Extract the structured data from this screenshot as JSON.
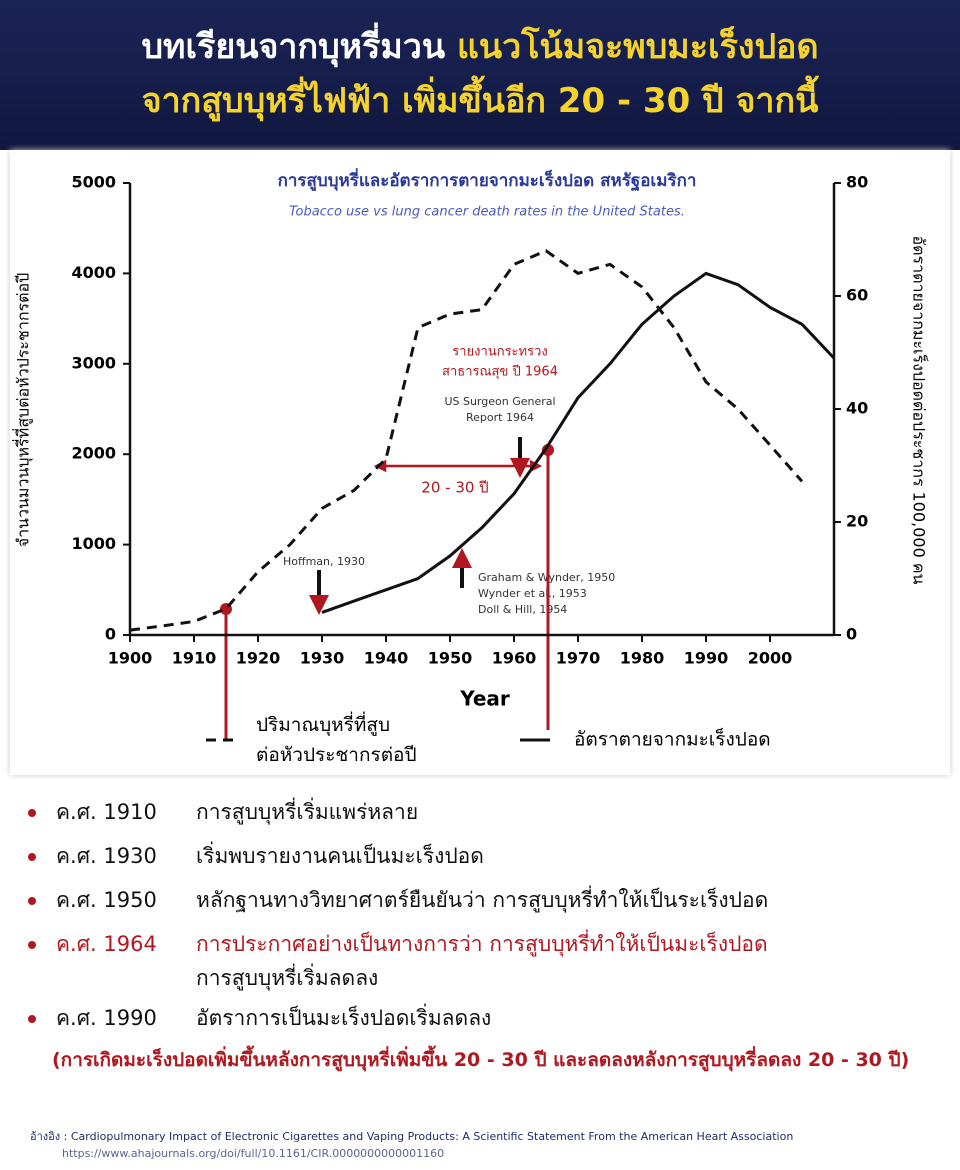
{
  "header": {
    "line1_white": "บทเรียนจากบุหรี่มวน",
    "line1_yellow": "แนวโน้มจะพบมะเร็งปอด",
    "line2": "จากสูบบุหรี่ไฟฟ้า เพิ่มขึ้นอีก 20 - 30 ปี จากนี้"
  },
  "chart_data": {
    "type": "line",
    "title": "การสูบบุหรี่และอัตราการตายจากมะเร็งปอด สหรัฐอเมริกา",
    "subtitle": "Tobacco use vs lung cancer death rates in the United States.",
    "x_label": "Year",
    "y_label": "จำนวนมวนบุหรี่ที่สูบต่อหัวประชากรต่อปี",
    "y2_label": "อัตราตายจากมะเร็งปอดต่อประชากร 100,000 คน",
    "x": [
      1900,
      1905,
      1910,
      1915,
      1920,
      1925,
      1930,
      1935,
      1940,
      1945,
      1950,
      1955,
      1960,
      1965,
      1970,
      1975,
      1980,
      1985,
      1990,
      1995,
      2000,
      2005,
      2010
    ],
    "xlim": [
      1900,
      2010
    ],
    "xticks": [
      1900,
      1910,
      1920,
      1930,
      1940,
      1950,
      1960,
      1970,
      1980,
      1990,
      2000
    ],
    "ylim": [
      0,
      5000
    ],
    "yticks": [
      0,
      1000,
      2000,
      3000,
      4000,
      5000
    ],
    "y2lim": [
      0,
      80
    ],
    "y2ticks": [
      0,
      20,
      40,
      60,
      80
    ],
    "series": [
      {
        "name": "ปริมาณบุหรี่ที่สูบ\nต่อหัวประชากรต่อปี",
        "color": "#111111",
        "dash": true,
        "values": [
          54,
          100,
          150,
          290,
          700,
          1000,
          1400,
          1600,
          1950,
          3400,
          3550,
          3600,
          4100,
          4250,
          4000,
          4100,
          3850,
          3400,
          2800,
          2500,
          2100,
          1700,
          null
        ]
      },
      {
        "name": "อัตราตายจากมะเร็งปอด",
        "color": "#111111",
        "dash": false,
        "axis": "y2",
        "values": [
          null,
          null,
          null,
          null,
          null,
          null,
          4,
          6,
          8,
          10,
          14,
          19,
          25,
          33,
          42,
          48,
          55,
          60,
          64,
          62,
          58,
          55,
          49
        ]
      }
    ],
    "annotations": [
      "รายงานกระทรวง",
      "สาธารณสุข ปี 1964",
      "US Surgeon General",
      "Report 1964",
      "Hoffman, 1930",
      "Graham & Wynder, 1950",
      "Wynder et al., 1953",
      "Doll & Hill, 1954",
      "20 - 30 ปี"
    ]
  },
  "timeline": [
    {
      "year": "ค.ศ. 1910",
      "text": "การสูบบุหรี่เริ่มแพร่หลาย"
    },
    {
      "year": "ค.ศ. 1930",
      "text": "เริ่มพบรายงานคนเป็นมะเร็งปอด"
    },
    {
      "year": "ค.ศ. 1950",
      "text": "หลักฐานทางวิทยาศาตร์ยืนยันว่า การสูบบุหรี่ทำให้เป็นระเร็งปอด"
    },
    {
      "year": "ค.ศ. 1964",
      "text": "การประกาศอย่างเป็นทางการว่า การสูบบุหรี่ทำให้เป็นมะเร็งปอด",
      "text2": "การสูบบุหรี่เริ่มลดลง"
    },
    {
      "year": "ค.ศ. 1990",
      "text": "อัตราการเป็นมะเร็งปอดเริ่มลดลง"
    }
  ],
  "note": "(การเกิดมะเร็งปอดเพิ่มขึ้นหลังการสูบบุหรี่เพิ่มขึ้น 20 - 30 ปี และลดลงหลังการสูบบุหรี่ลดลง 20 - 30 ปี)",
  "reference": {
    "label": "อ้างอิง :",
    "text": "Cardiopulmonary Impact of Electronic Cigarettes and Vaping Products: A Scientific Statement From the American Heart Association",
    "url": "https://www.ahajournals.org/doi/full/10.1161/CIR.0000000000001160"
  }
}
